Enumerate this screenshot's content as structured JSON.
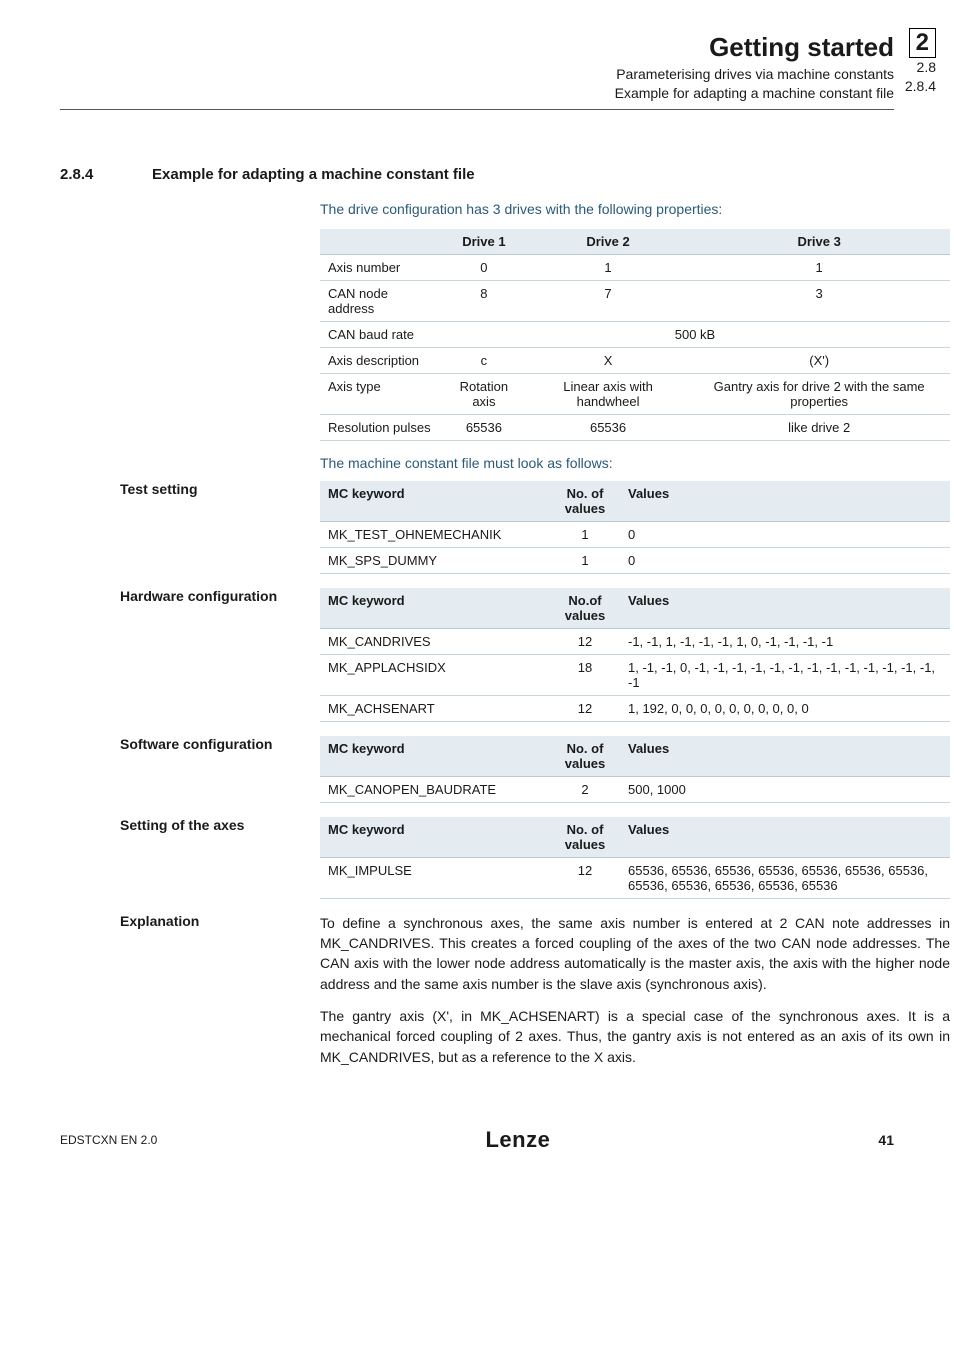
{
  "header": {
    "title": "Getting started",
    "sub1": "Parameterising drives via machine constants",
    "sub2": "Example for adapting a machine constant file",
    "chapterBox": "2",
    "chapterSub1": "2.8",
    "chapterSub2": "2.8.4"
  },
  "section": {
    "num": "2.8.4",
    "title": "Example for adapting a machine constant file",
    "intro": "The drive configuration has 3 drives with the following properties:",
    "afterPropsIntro": "The machine constant file must look as follows:"
  },
  "propsTable": {
    "headers": [
      "",
      "Drive 1",
      "Drive 2",
      "Drive 3"
    ],
    "rows": [
      [
        "Axis number",
        "0",
        "1",
        "1"
      ],
      [
        "CAN node address",
        "8",
        "7",
        "3"
      ],
      [
        "CAN baud rate",
        "500 kB",
        "__span3__",
        ""
      ],
      [
        "Axis description",
        "c",
        "X",
        "(X')"
      ],
      [
        "Axis type",
        "Rotation axis",
        "Linear axis with handwheel",
        "Gantry axis for drive 2 with the same properties"
      ],
      [
        "Resolution pulses",
        "65536",
        "65536",
        "like drive 2"
      ]
    ]
  },
  "testSetting": {
    "label": "Test setting",
    "headers": [
      "MC keyword",
      "No. of values",
      "Values"
    ],
    "rows": [
      [
        "MK_TEST_OHNEMECHANIK",
        "1",
        "0"
      ],
      [
        "MK_SPS_DUMMY",
        "1",
        "0"
      ]
    ]
  },
  "hwConfig": {
    "label": "Hardware configuration",
    "headers": [
      "MC keyword",
      "No.of values",
      "Values"
    ],
    "rows": [
      [
        "MK_CANDRIVES",
        "12",
        "-1, -1, 1, -1, -1, -1, 1, 0, -1, -1, -1, -1"
      ],
      [
        "MK_APPLACHSIDX",
        "18",
        "1, -1, -1, 0, -1, -1, -1, -1, -1, -1, -1, -1, -1, -1, -1, -1, -1, -1"
      ],
      [
        "MK_ACHSENART",
        "12",
        "1, 192, 0, 0, 0, 0, 0, 0, 0, 0, 0, 0"
      ]
    ]
  },
  "swConfig": {
    "label": "Software configuration",
    "headers": [
      "MC keyword",
      "No. of values",
      "Values"
    ],
    "rows": [
      [
        "MK_CANOPEN_BAUDRATE",
        "2",
        "500, 1000"
      ]
    ]
  },
  "axesSetting": {
    "label": "Setting of the axes",
    "headers": [
      "MC keyword",
      "No. of values",
      "Values"
    ],
    "rows": [
      [
        "MK_IMPULSE",
        "12",
        "65536, 65536, 65536, 65536, 65536, 65536, 65536, 65536, 65536, 65536, 65536, 65536"
      ]
    ]
  },
  "explanation": {
    "label": "Explanation",
    "p1": "To define a synchronous axes, the same axis number is entered at 2 CAN note addresses in MK_CANDRIVES. This creates a forced coupling of the axes of the two CAN node addresses. The CAN axis with the lower node address automatically is the master axis, the axis with the higher node address and the same axis number is the slave axis (synchronous axis).",
    "p2": "The gantry axis (X', in MK_ACHSENART) is a special case of the synchronous axes. It is a mechanical forced coupling of 2 axes. Thus, the gantry axis is not entered as an axis of its own in MK_CANDRIVES, but as a reference to the X axis."
  },
  "footer": {
    "left": "EDSTCXN EN 2.0",
    "logo": "Lenze",
    "page": "41"
  }
}
